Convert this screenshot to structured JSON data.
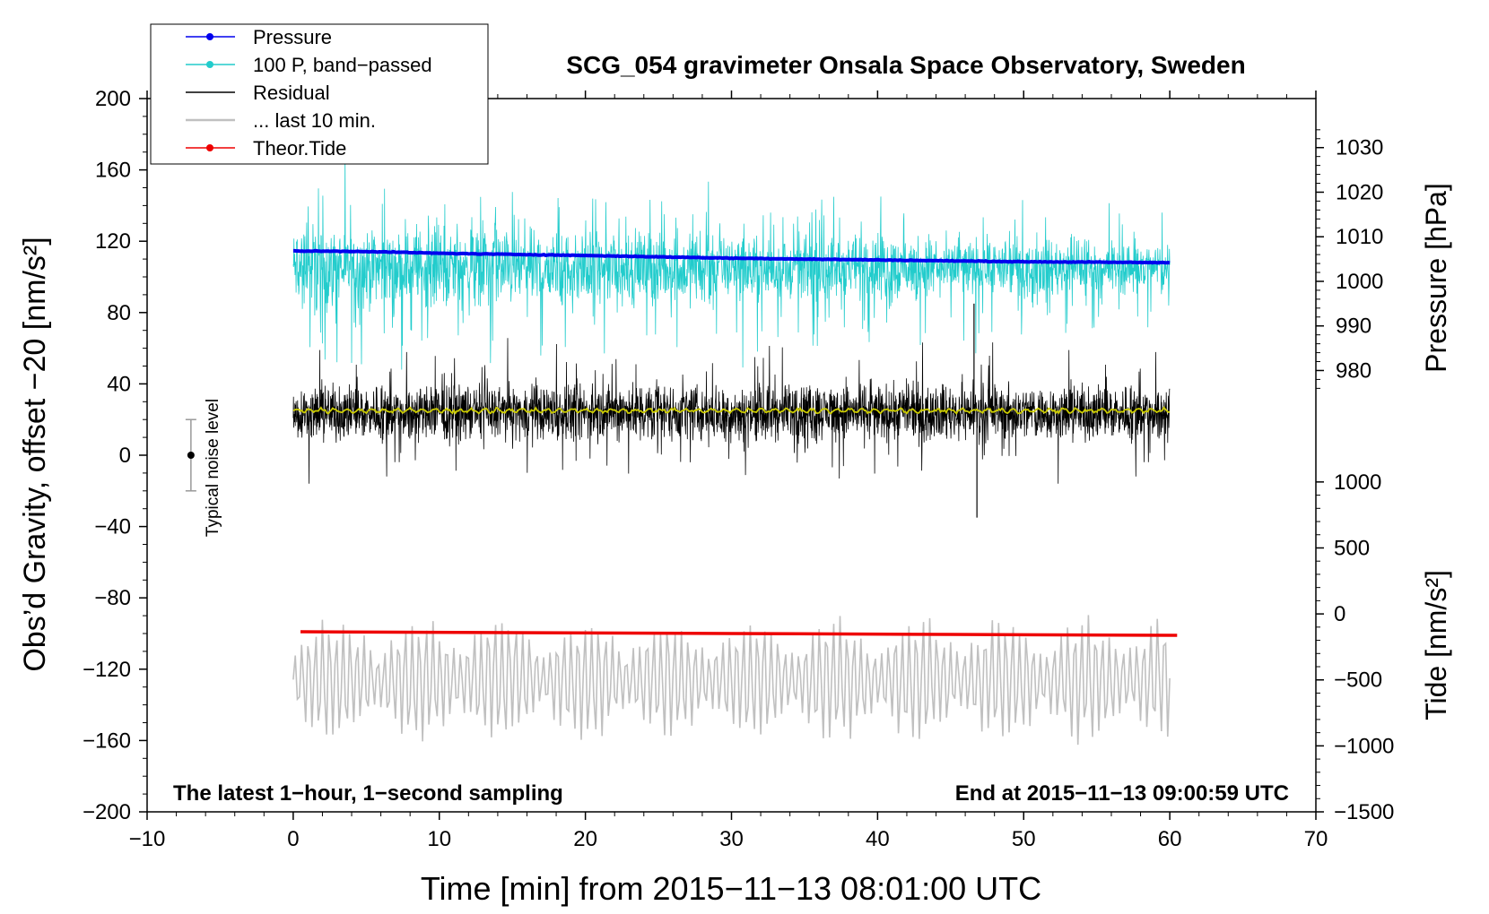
{
  "chart_data": {
    "type": "line",
    "title": "SCG_054 gravimeter Onsala Space Observatory, Sweden",
    "xlabel": "Time [min] from 2015−11−13 08:01:00 UTC",
    "ylabel_left": "Obs’d Gravity, offset −20 [nm/s²]",
    "ylabel_right_top": "Pressure [hPa]",
    "ylabel_right_bottom": "Tide [nm/s²]",
    "xlim": [
      -10,
      70
    ],
    "ylim_left": [
      -200,
      200
    ],
    "x_ticks": [
      {
        "v": -10,
        "label": "−10"
      },
      {
        "v": 0,
        "label": "0"
      },
      {
        "v": 10,
        "label": "10"
      },
      {
        "v": 20,
        "label": "20"
      },
      {
        "v": 30,
        "label": "30"
      },
      {
        "v": 40,
        "label": "40"
      },
      {
        "v": 50,
        "label": "50"
      },
      {
        "v": 60,
        "label": "60"
      },
      {
        "v": 70,
        "label": "70"
      }
    ],
    "y_left_ticks": [
      {
        "v": 200,
        "label": "200"
      },
      {
        "v": 160,
        "label": "160"
      },
      {
        "v": 120,
        "label": "120"
      },
      {
        "v": 80,
        "label": "80"
      },
      {
        "v": 40,
        "label": "40"
      },
      {
        "v": 0,
        "label": "0"
      },
      {
        "v": -40,
        "label": "−40"
      },
      {
        "v": -80,
        "label": "−80"
      },
      {
        "v": -120,
        "label": "−120"
      },
      {
        "v": -160,
        "label": "−160"
      },
      {
        "v": -200,
        "label": "−200"
      }
    ],
    "pressure_axis": {
      "gravity_range": [
        35,
        185
      ],
      "hpa_range": [
        975,
        1035
      ],
      "ticks": [
        {
          "v": 1030,
          "label": "1030"
        },
        {
          "v": 1020,
          "label": "1020"
        },
        {
          "v": 1010,
          "label": "1010"
        },
        {
          "v": 1000,
          "label": "1000"
        },
        {
          "v": 990,
          "label": "990"
        },
        {
          "v": 980,
          "label": "980"
        }
      ]
    },
    "tide_axis": {
      "gravity_range": [
        -200,
        -15
      ],
      "tide_range": [
        -1500,
        1000
      ],
      "ticks": [
        {
          "v": 1000,
          "label": "1000"
        },
        {
          "v": 500,
          "label": "500"
        },
        {
          "v": 0,
          "label": "0"
        },
        {
          "v": -500,
          "label": "−500"
        },
        {
          "v": -1000,
          "label": "−1000"
        },
        {
          "v": -1500,
          "label": "−1500"
        }
      ]
    },
    "series": [
      {
        "name": "Pressure",
        "color": "#0000ee",
        "unit": "hPa",
        "x": [
          0,
          5,
          10,
          20,
          30,
          40,
          50,
          60
        ],
        "y": [
          1006.8,
          1006.7,
          1006.3,
          1005.8,
          1005.2,
          1004.8,
          1004.4,
          1004.2
        ]
      },
      {
        "name": "100 P, band−passed",
        "color": "#22cccc",
        "unit": "nm/s²",
        "x_start": 0,
        "x_end": 60,
        "center": 105,
        "amplitude": [
          18,
          65
        ]
      },
      {
        "name": "Residual",
        "color": "#000000",
        "unit": "nm/s²",
        "x_start": 0,
        "x_end": 60,
        "center": 24,
        "amplitude": [
          10,
          85
        ],
        "spikes": [
          {
            "x": 46.6,
            "y": 85
          },
          {
            "x": 46.8,
            "y": -35
          }
        ]
      },
      {
        "name": "smoothed residual",
        "color": "#cccc00",
        "unit": "nm/s²",
        "x_start": 0,
        "x_end": 60,
        "center": 25
      },
      {
        "name": "... last 10 min.",
        "color": "#c0c0c0",
        "unit": "nm/s²",
        "x_start": 0,
        "x_end": 60,
        "center": -126,
        "amplitude": [
          -165,
          -85
        ]
      },
      {
        "name": "Theor.Tide",
        "color": "#ee0000",
        "unit": "nm/s²",
        "x": [
          0.5,
          15,
          30,
          45,
          60.5
        ],
        "y": [
          -99,
          -99.5,
          -100,
          -100.5,
          -101
        ]
      }
    ],
    "noise_marker": {
      "label": "Typical noise level",
      "x": -7,
      "y": 0,
      "range": [
        -20,
        20
      ]
    },
    "annotations": {
      "bottom_left": "The latest 1−hour, 1−second sampling",
      "bottom_right": "End at 2015−11−13 09:00:59 UTC"
    },
    "legend": {
      "position": "top-left",
      "entries": [
        {
          "label": "Pressure",
          "color": "#0000ee",
          "marker": true
        },
        {
          "label": "100 P, band−passed",
          "color": "#22cccc",
          "marker": true
        },
        {
          "label": "Residual",
          "color": "#000000",
          "marker": false
        },
        {
          "label": "... last 10 min.",
          "color": "#c0c0c0",
          "marker": false
        },
        {
          "label": "Theor.Tide",
          "color": "#ee0000",
          "marker": true
        }
      ]
    }
  }
}
